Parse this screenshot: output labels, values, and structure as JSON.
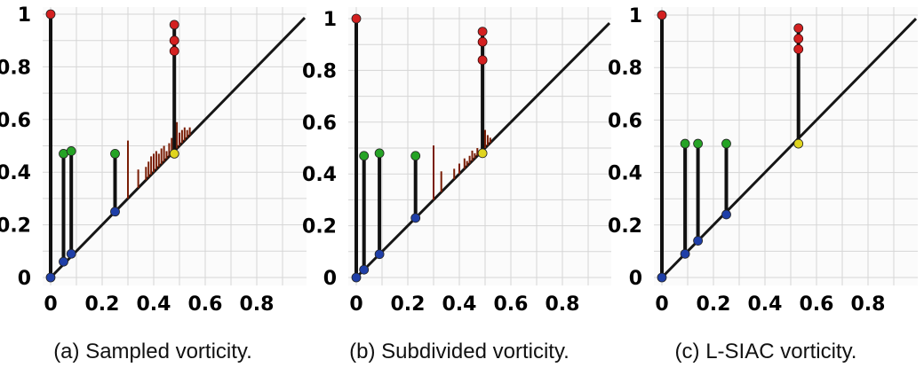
{
  "chart_data": [
    {
      "type": "persistence-diagram",
      "caption": "(a) Sampled vorticity.",
      "xlim": [
        0,
        1
      ],
      "ylim": [
        0,
        1
      ],
      "xticks": [
        "0",
        "0.2",
        "0.4",
        "0.6",
        "0.8"
      ],
      "yticks": [
        "0",
        "0.2",
        "0.4",
        "0.6",
        "0.8",
        "1"
      ],
      "grid": true,
      "diagonal": true,
      "stems": [
        {
          "x": 0.0,
          "y0": 0.0,
          "y1": 1.0,
          "top": "red",
          "base": "blue"
        },
        {
          "x": 0.05,
          "y0": 0.06,
          "y1": 0.47,
          "top": "green",
          "base": "blue"
        },
        {
          "x": 0.08,
          "y0": 0.09,
          "y1": 0.48,
          "top": "green",
          "base": "blue"
        },
        {
          "x": 0.25,
          "y0": 0.25,
          "y1": 0.47,
          "top": "green",
          "base": "blue"
        },
        {
          "x": 0.48,
          "y0": 0.47,
          "y1": 0.96,
          "top": "red",
          "base": "yellow",
          "extra_top": [
            0.9,
            0.86
          ]
        }
      ],
      "noise": [
        [
          0.3,
          0.52
        ],
        [
          0.34,
          0.41
        ],
        [
          0.37,
          0.42
        ],
        [
          0.38,
          0.44
        ],
        [
          0.39,
          0.46
        ],
        [
          0.4,
          0.47
        ],
        [
          0.41,
          0.48
        ],
        [
          0.42,
          0.47
        ],
        [
          0.43,
          0.49
        ],
        [
          0.44,
          0.5
        ],
        [
          0.45,
          0.48
        ],
        [
          0.46,
          0.51
        ],
        [
          0.47,
          0.53
        ],
        [
          0.49,
          0.59
        ],
        [
          0.5,
          0.55
        ],
        [
          0.51,
          0.56
        ],
        [
          0.52,
          0.57
        ],
        [
          0.53,
          0.56
        ],
        [
          0.54,
          0.57
        ]
      ],
      "colors": {
        "red": "#d42020",
        "green": "#25a325",
        "blue": "#1f3fa8",
        "yellow": "#e0d51f",
        "stem": "#111111",
        "noise": "#7a1e06"
      }
    },
    {
      "type": "persistence-diagram",
      "caption": "(b) Subdivided vorticity.",
      "xlim": [
        0,
        1
      ],
      "ylim": [
        0,
        1
      ],
      "xticks": [
        "0",
        "0.2",
        "0.4",
        "0.6",
        "0.8"
      ],
      "yticks": [
        "0",
        "0.2",
        "0.4",
        "0.6",
        "0.8",
        "1"
      ],
      "grid": true,
      "diagonal": true,
      "stems": [
        {
          "x": 0.0,
          "y0": 0.0,
          "y1": 1.0,
          "top": "red",
          "base": "blue"
        },
        {
          "x": 0.03,
          "y0": 0.03,
          "y1": 0.47,
          "top": "green",
          "base": "blue"
        },
        {
          "x": 0.09,
          "y0": 0.09,
          "y1": 0.48,
          "top": "green",
          "base": "blue"
        },
        {
          "x": 0.23,
          "y0": 0.23,
          "y1": 0.47,
          "top": "green",
          "base": "blue"
        },
        {
          "x": 0.49,
          "y0": 0.48,
          "y1": 0.95,
          "top": "red",
          "base": "yellow",
          "extra_top": [
            0.91,
            0.84
          ]
        }
      ],
      "noise": [
        [
          0.3,
          0.51
        ],
        [
          0.33,
          0.41
        ],
        [
          0.38,
          0.42
        ],
        [
          0.4,
          0.44
        ],
        [
          0.42,
          0.46
        ],
        [
          0.43,
          0.45
        ],
        [
          0.44,
          0.47
        ],
        [
          0.45,
          0.49
        ],
        [
          0.46,
          0.48
        ],
        [
          0.47,
          0.5
        ],
        [
          0.5,
          0.57
        ],
        [
          0.51,
          0.55
        ],
        [
          0.52,
          0.54
        ]
      ],
      "colors": {
        "red": "#d42020",
        "green": "#25a325",
        "blue": "#1f3fa8",
        "yellow": "#e0d51f",
        "stem": "#111111",
        "noise": "#7a1e06"
      }
    },
    {
      "type": "persistence-diagram",
      "caption": "(c) L-SIAC vorticity.",
      "xlim": [
        0,
        1
      ],
      "ylim": [
        0,
        1
      ],
      "xticks": [
        "0",
        "0.2",
        "0.4",
        "0.6",
        "0.8"
      ],
      "yticks": [
        "0",
        "0.2",
        "0.4",
        "0.6",
        "0.8",
        "1"
      ],
      "grid": true,
      "diagonal": true,
      "stems": [
        {
          "x": 0.0,
          "y0": 0.0,
          "y1": 1.0,
          "top": "red",
          "base": "blue"
        },
        {
          "x": 0.09,
          "y0": 0.09,
          "y1": 0.51,
          "top": "green",
          "base": "blue"
        },
        {
          "x": 0.14,
          "y0": 0.14,
          "y1": 0.51,
          "top": "green",
          "base": "blue"
        },
        {
          "x": 0.25,
          "y0": 0.24,
          "y1": 0.51,
          "top": "green",
          "base": "blue"
        },
        {
          "x": 0.53,
          "y0": 0.51,
          "y1": 0.95,
          "top": "red",
          "base": "yellow",
          "extra_top": [
            0.91,
            0.87
          ]
        }
      ],
      "noise": [],
      "colors": {
        "red": "#d42020",
        "green": "#25a325",
        "blue": "#1f3fa8",
        "yellow": "#e0d51f",
        "stem": "#111111",
        "noise": "#7a1e06"
      }
    }
  ]
}
